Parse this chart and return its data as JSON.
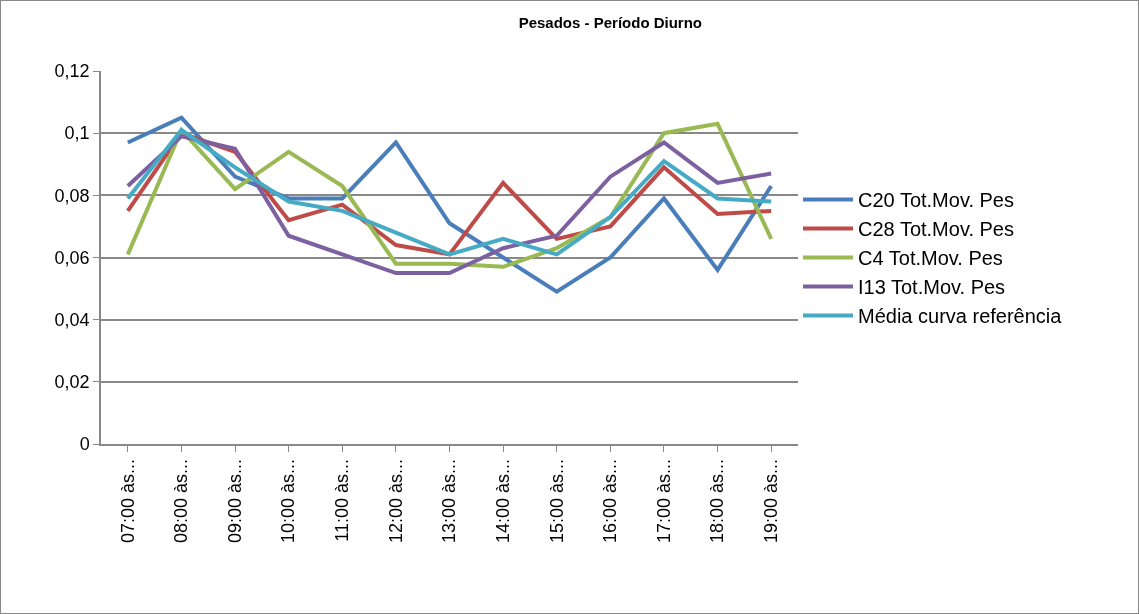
{
  "chart_data": {
    "type": "line",
    "title": "Pesados - Período Diurno",
    "categories": [
      "07:00 às...",
      "08:00 às...",
      "09:00 às...",
      "10:00 às...",
      "11:00 às...",
      "12:00 às...",
      "13:00 às...",
      "14:00 às...",
      "15:00 às...",
      "16:00 às...",
      "17:00 às...",
      "18:00 às...",
      "19:00 às..."
    ],
    "series": [
      {
        "name": "C20 Tot.Mov. Pes",
        "color": "#4a7ebb",
        "values": [
          0.097,
          0.105,
          0.086,
          0.079,
          0.079,
          0.097,
          0.071,
          0.06,
          0.049,
          0.06,
          0.079,
          0.056,
          0.083
        ]
      },
      {
        "name": "C28 Tot.Mov. Pes",
        "color": "#be4b48",
        "values": [
          0.075,
          0.1,
          0.094,
          0.072,
          0.077,
          0.064,
          0.061,
          0.084,
          0.066,
          0.07,
          0.089,
          0.074,
          0.075
        ]
      },
      {
        "name": "C4 Tot.Mov. Pes",
        "color": "#98b954",
        "values": [
          0.061,
          0.101,
          0.082,
          0.094,
          0.083,
          0.058,
          0.058,
          0.057,
          0.063,
          0.073,
          0.1,
          0.103,
          0.066
        ]
      },
      {
        "name": "I13 Tot.Mov. Pes",
        "color": "#7d60a0",
        "values": [
          0.083,
          0.099,
          0.095,
          0.067,
          0.061,
          0.055,
          0.055,
          0.063,
          0.067,
          0.086,
          0.097,
          0.084,
          0.087
        ]
      },
      {
        "name": "Média curva referência",
        "color": "#46aac5",
        "values": [
          0.079,
          0.101,
          0.089,
          0.078,
          0.075,
          0.068,
          0.061,
          0.066,
          0.061,
          0.073,
          0.091,
          0.079,
          0.078
        ]
      }
    ],
    "ylim": [
      0,
      0.12
    ],
    "yticks": [
      {
        "value": 0,
        "label": "0"
      },
      {
        "value": 0.02,
        "label": "0,02"
      },
      {
        "value": 0.04,
        "label": "0,04"
      },
      {
        "value": 0.06,
        "label": "0,06"
      },
      {
        "value": 0.08,
        "label": "0,08"
      },
      {
        "value": 0.1,
        "label": "0,1"
      },
      {
        "value": 0.12,
        "label": "0,12"
      }
    ],
    "grid": "y",
    "legend": "right",
    "marker": "none",
    "line_style": "solid"
  }
}
